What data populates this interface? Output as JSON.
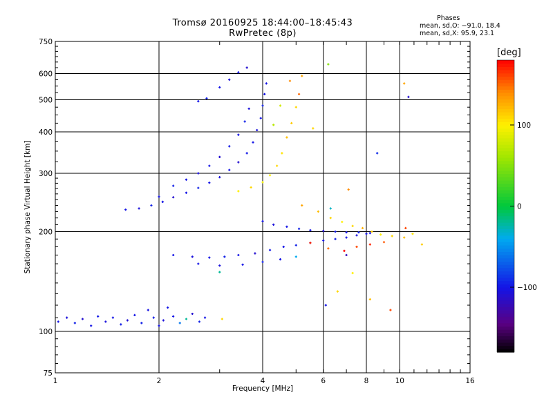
{
  "title": "Tromsø 20160925 18:44:00–18:45:43",
  "subtitle": "RwPretec (8p)",
  "stats": {
    "heading": "Phases",
    "line_o": "mean, sd,O: −91.0, 18.4",
    "line_x": "mean, sd,X:  95.9, 23.1"
  },
  "colors": {
    "background": "#ffffff",
    "axes": "#000000"
  },
  "chart_data": {
    "type": "scatter",
    "xlabel": "Frequency [MHz]",
    "ylabel": "Stationary phase Virtual Height [km]",
    "x_scale": "log",
    "y_scale": "log",
    "xlim": [
      1,
      16
    ],
    "ylim": [
      75,
      750
    ],
    "grid": true,
    "xticks": [
      1,
      2,
      4,
      6,
      8,
      10,
      16
    ],
    "xtick_labels": [
      "1",
      "2",
      "4",
      "6",
      "8",
      "10",
      "16"
    ],
    "x_gridlines": [
      2,
      4,
      6,
      8,
      10
    ],
    "yticks": [
      75,
      100,
      200,
      300,
      400,
      500,
      600,
      750
    ],
    "ytick_labels": [
      "75",
      "100",
      "200",
      "300",
      "400",
      "500",
      "600",
      "750"
    ],
    "y_gridlines": [
      100,
      200,
      300,
      400,
      500,
      600
    ],
    "colorbar": {
      "label": "deg",
      "range": [
        -180,
        180
      ],
      "ticks": [
        -100,
        0,
        100
      ],
      "tick_labels": [
        "−100",
        "0",
        "100"
      ],
      "colormap": "rainbow (black–purple–blue–cyan–green–yellow–orange–red)"
    },
    "series": [
      {
        "name": "",
        "points": [
          [
            1.02,
            107,
            -100
          ],
          [
            1.08,
            110,
            -105
          ],
          [
            1.14,
            106,
            -95
          ],
          [
            1.2,
            109,
            -110
          ],
          [
            1.27,
            104,
            -100
          ],
          [
            1.33,
            111,
            -98
          ],
          [
            1.4,
            107,
            -104
          ],
          [
            1.47,
            110,
            -100
          ],
          [
            1.55,
            105,
            -96
          ],
          [
            1.62,
            108,
            -108
          ],
          [
            1.7,
            112,
            -100
          ],
          [
            1.78,
            106,
            -95
          ],
          [
            1.86,
            116,
            -102
          ],
          [
            1.93,
            110,
            -97
          ],
          [
            2.0,
            104,
            -100
          ],
          [
            2.06,
            108,
            -105
          ],
          [
            2.12,
            118,
            -99
          ],
          [
            2.2,
            111,
            -100
          ],
          [
            2.3,
            106,
            -60
          ],
          [
            2.4,
            109,
            -20
          ],
          [
            2.5,
            113,
            -110
          ],
          [
            2.62,
            107,
            -95
          ],
          [
            2.72,
            110,
            -100
          ],
          [
            3.05,
            109,
            110
          ]
        ]
      },
      {
        "name": "",
        "points": [
          [
            1.6,
            233,
            -100
          ],
          [
            1.75,
            235,
            -105
          ],
          [
            1.9,
            240,
            -95
          ],
          [
            2.05,
            246,
            -100
          ],
          [
            2.2,
            254,
            -110
          ],
          [
            2.4,
            262,
            -100
          ],
          [
            2.6,
            271,
            -95
          ],
          [
            2.8,
            281,
            -100
          ],
          [
            3.0,
            292,
            -105
          ],
          [
            3.2,
            307,
            -100
          ],
          [
            3.4,
            324,
            -110
          ],
          [
            3.6,
            345,
            -98
          ],
          [
            3.75,
            372,
            -100
          ],
          [
            3.85,
            405,
            -105
          ],
          [
            3.95,
            440,
            -100
          ],
          [
            4.0,
            480,
            -95
          ],
          [
            4.05,
            520,
            -100
          ],
          [
            4.1,
            560,
            -100
          ]
        ]
      },
      {
        "name": "",
        "points": [
          [
            2.0,
            255,
            -100
          ],
          [
            2.2,
            275,
            -95
          ],
          [
            2.4,
            287,
            -100
          ],
          [
            2.6,
            300,
            -105
          ],
          [
            2.8,
            316,
            -100
          ],
          [
            3.0,
            336,
            -110
          ],
          [
            3.2,
            362,
            -98
          ],
          [
            3.4,
            392,
            -100
          ],
          [
            3.55,
            430,
            -95
          ],
          [
            3.65,
            470,
            -105
          ]
        ]
      },
      {
        "name": "",
        "points": [
          [
            2.6,
            495,
            -100
          ],
          [
            2.75,
            505,
            -95
          ],
          [
            3.0,
            545,
            -100
          ],
          [
            3.2,
            575,
            -105
          ],
          [
            3.4,
            605,
            -100
          ],
          [
            3.6,
            625,
            -110
          ]
        ]
      },
      {
        "name": "",
        "points": [
          [
            3.4,
            265,
            100
          ],
          [
            3.7,
            272,
            110
          ],
          [
            4.0,
            282,
            95
          ],
          [
            4.2,
            296,
            100
          ],
          [
            4.4,
            316,
            110
          ],
          [
            4.55,
            345,
            105
          ],
          [
            4.7,
            385,
            120
          ],
          [
            4.85,
            425,
            115
          ],
          [
            5.0,
            475,
            110
          ],
          [
            5.1,
            520,
            150
          ],
          [
            5.2,
            590,
            130
          ],
          [
            4.8,
            570,
            140
          ],
          [
            4.5,
            480,
            80
          ],
          [
            4.3,
            420,
            70
          ]
        ]
      },
      {
        "name": "",
        "points": [
          [
            2.2,
            170,
            -100
          ],
          [
            2.5,
            168,
            -105
          ],
          [
            2.8,
            167,
            -100
          ],
          [
            3.1,
            168,
            -95
          ],
          [
            3.4,
            170,
            -100
          ],
          [
            3.8,
            172,
            -110
          ],
          [
            4.2,
            176,
            -98
          ],
          [
            4.6,
            180,
            -100
          ],
          [
            5.0,
            182,
            -95
          ],
          [
            5.5,
            185,
            -105
          ],
          [
            6.0,
            188,
            -100
          ],
          [
            6.5,
            190,
            -95
          ],
          [
            7.0,
            192,
            -100
          ],
          [
            7.5,
            195,
            -105
          ],
          [
            8.0,
            197,
            -100
          ],
          [
            2.6,
            160,
            -100
          ],
          [
            3.0,
            158,
            -105
          ],
          [
            3.5,
            159,
            -100
          ],
          [
            4.0,
            162,
            -95
          ],
          [
            4.5,
            165,
            -100
          ],
          [
            5.0,
            168,
            -40
          ]
        ]
      },
      {
        "name": "",
        "points": [
          [
            4.0,
            215,
            -100
          ],
          [
            4.3,
            210,
            -105
          ],
          [
            4.7,
            207,
            -100
          ],
          [
            5.1,
            204,
            -95
          ],
          [
            5.5,
            202,
            -100
          ],
          [
            6.0,
            201,
            -110
          ],
          [
            6.5,
            200,
            -98
          ],
          [
            7.0,
            199,
            -100
          ],
          [
            7.6,
            199,
            -95
          ],
          [
            8.2,
            198,
            -100
          ]
        ]
      },
      {
        "name": "",
        "points": [
          [
            5.2,
            240,
            130
          ],
          [
            5.8,
            230,
            120
          ],
          [
            6.3,
            220,
            110
          ],
          [
            6.8,
            214,
            100
          ],
          [
            7.3,
            208,
            110
          ],
          [
            7.8,
            205,
            125
          ],
          [
            8.3,
            200,
            115
          ],
          [
            8.8,
            196,
            100
          ],
          [
            9.5,
            194,
            110
          ],
          [
            10.3,
            192,
            120
          ],
          [
            10.9,
            197,
            105
          ],
          [
            11.6,
            183,
            115
          ],
          [
            5.5,
            185,
            170
          ],
          [
            6.2,
            178,
            150
          ],
          [
            6.9,
            175,
            180
          ],
          [
            7.5,
            180,
            160
          ],
          [
            8.2,
            183,
            170
          ],
          [
            9.0,
            186,
            155
          ]
        ]
      },
      {
        "name": "",
        "points": [
          [
            6.1,
            120,
            -100
          ],
          [
            6.6,
            132,
            110
          ],
          [
            7.3,
            150,
            100
          ],
          [
            8.2,
            125,
            120
          ],
          [
            8.6,
            345,
            -90
          ],
          [
            10.3,
            560,
            130
          ],
          [
            10.6,
            510,
            -110
          ],
          [
            10.4,
            205,
            160
          ],
          [
            7.1,
            268,
            140
          ],
          [
            6.2,
            640,
            50
          ],
          [
            5.6,
            410,
            110
          ],
          [
            9.4,
            116,
            160
          ],
          [
            6.3,
            235,
            -30
          ],
          [
            7.0,
            170,
            -120
          ],
          [
            3.0,
            151,
            -20
          ]
        ]
      }
    ]
  }
}
